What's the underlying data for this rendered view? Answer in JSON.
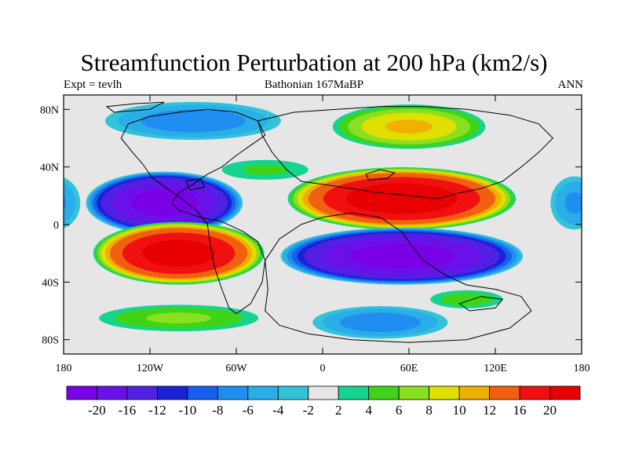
{
  "title": "Streamfunction Perturbation at 200 hPa (km2/s)",
  "subtitle_left": "Expt = tevlh",
  "subtitle_center": "Bathonian 167MaBP",
  "subtitle_right": "ANN",
  "map": {
    "projection": "cylindrical-equidistant",
    "lon_range": [
      -180,
      180
    ],
    "lat_range": [
      -90,
      90
    ],
    "lon_ticks": [
      {
        "value": -180,
        "label": "180"
      },
      {
        "value": -120,
        "label": "120W"
      },
      {
        "value": -60,
        "label": "60W"
      },
      {
        "value": 0,
        "label": "0"
      },
      {
        "value": 60,
        "label": "60E"
      },
      {
        "value": 120,
        "label": "120E"
      },
      {
        "value": 180,
        "label": "180"
      }
    ],
    "lat_ticks": [
      {
        "value": 80,
        "label": "80N"
      },
      {
        "value": 40,
        "label": "40N"
      },
      {
        "value": 0,
        "label": "0"
      },
      {
        "value": -40,
        "label": "40S"
      },
      {
        "value": -80,
        "label": "80S"
      }
    ],
    "background_level_color": "#e6e6e6",
    "coastline_color": "#000000",
    "cells": [
      {
        "name": "nh-pacific-low",
        "lon": -110,
        "lat": 15,
        "rlon": 55,
        "rlat": 22,
        "peak": -22
      },
      {
        "name": "sh-pacific-high",
        "lon": -100,
        "lat": -20,
        "rlon": 60,
        "rlat": 22,
        "peak": 22
      },
      {
        "name": "nh-tethys-high",
        "lon": 55,
        "lat": 18,
        "rlon": 80,
        "rlat": 22,
        "peak": 23
      },
      {
        "name": "sh-indian-low",
        "lon": 55,
        "lat": -22,
        "rlon": 85,
        "rlat": 20,
        "peak": -22
      },
      {
        "name": "arctic-asia-high",
        "lon": 60,
        "lat": 68,
        "rlon": 55,
        "rlat": 16,
        "peak": 10
      },
      {
        "name": "arctic-america-low",
        "lon": -90,
        "lat": 72,
        "rlon": 65,
        "rlat": 14,
        "peak": -7
      },
      {
        "name": "southern-ocean-low",
        "lon": 40,
        "lat": -68,
        "rlon": 50,
        "rlat": 12,
        "peak": -7
      },
      {
        "name": "sh-pacific-subpolar-high",
        "lon": -100,
        "lat": -65,
        "rlon": 60,
        "rlat": 10,
        "peak": 6
      },
      {
        "name": "sh-indian-subpolar-high",
        "lon": 100,
        "lat": -52,
        "rlon": 28,
        "rlat": 7,
        "peak": 5
      },
      {
        "name": "mid-atlantic-high",
        "lon": -40,
        "lat": 38,
        "rlon": 35,
        "rlat": 8,
        "peak": 4
      },
      {
        "name": "far-east-pacific-low",
        "lon": 175,
        "lat": 15,
        "rlon": 18,
        "rlat": 20,
        "peak": -6
      }
    ]
  },
  "colorbar": {
    "labels": [
      "-20",
      "-16",
      "-12",
      "-10",
      "-8",
      "-6",
      "-4",
      "-2",
      "2",
      "4",
      "6",
      "8",
      "10",
      "12",
      "16",
      "20"
    ],
    "levels": [
      -20,
      -16,
      -12,
      -10,
      -8,
      -6,
      -4,
      -2,
      2,
      4,
      6,
      8,
      10,
      12,
      16,
      20
    ],
    "colors": [
      "#7a00e6",
      "#6a10e8",
      "#5220e4",
      "#1a22d6",
      "#1560ee",
      "#1f8ef0",
      "#2aaee8",
      "#32c2dc",
      "#e6e6e6",
      "#14d490",
      "#40d418",
      "#8ae020",
      "#e0e000",
      "#f0b000",
      "#f06010",
      "#f01010",
      "#e80000"
    ]
  }
}
